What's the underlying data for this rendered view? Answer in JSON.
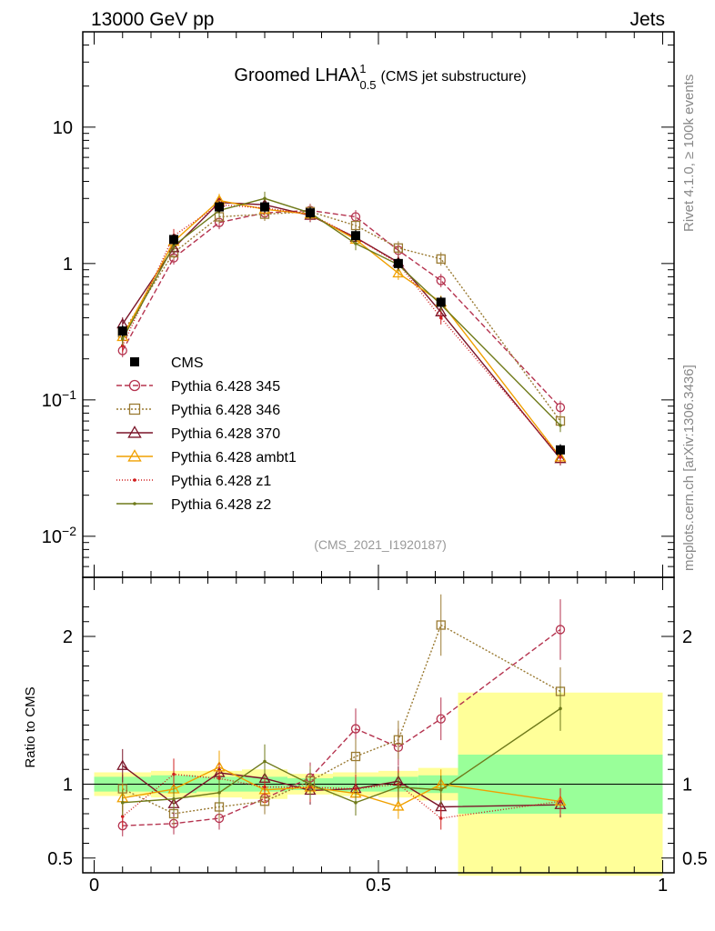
{
  "header": {
    "left": "13000 GeV pp",
    "right": "Jets"
  },
  "side": {
    "rivet": "Rivet 4.1.0, ≥ 100k events",
    "mcplots": "mcplots.cern.ch [arXiv:1306.3436]"
  },
  "chart_data": {
    "type": "line",
    "title": {
      "main": "Groomed LHA",
      "symbol": "λ",
      "sup": "1",
      "sub": "0.5",
      "suffix": "(CMS jet substructure)"
    },
    "analysis_id": "(CMS_2021_I1920187)",
    "yscale": "log",
    "ylim": [
      0.005,
      50
    ],
    "xlim": [
      -0.02,
      1.02
    ],
    "ratio_ylabel": "Ratio to CMS",
    "ratio_ylim": [
      0.4,
      2.4
    ],
    "main_y_ticks": [
      {
        "value": 10,
        "label": "10"
      },
      {
        "value": 1,
        "label": "1"
      },
      {
        "value": 0.1,
        "label": "10",
        "exp": "−1"
      },
      {
        "value": 0.01,
        "label": "10",
        "exp": "−2"
      }
    ],
    "ratio_y_ticks": [
      {
        "value": 0.5,
        "label": "0.5"
      },
      {
        "value": 1,
        "label": "1"
      },
      {
        "value": 2,
        "label": "2"
      }
    ],
    "x_ticks": [
      {
        "value": 0,
        "label": "0"
      },
      {
        "value": 0.5,
        "label": "0.5"
      },
      {
        "value": 1,
        "label": "1"
      }
    ],
    "x": [
      0.05,
      0.14,
      0.22,
      0.3,
      0.38,
      0.46,
      0.535,
      0.61,
      0.82
    ],
    "bin_edges": [
      0,
      0.1,
      0.18,
      0.26,
      0.34,
      0.42,
      0.5,
      0.57,
      0.64,
      1.0
    ],
    "data": {
      "name": "CMS",
      "values": [
        0.32,
        1.5,
        2.6,
        2.6,
        2.35,
        1.6,
        1.0,
        0.52,
        0.043
      ],
      "band_stat": [
        0.05,
        0.06,
        0.05,
        0.05,
        0.04,
        0.05,
        0.05,
        0.06,
        0.2
      ],
      "band_total": [
        0.08,
        0.09,
        0.09,
        0.1,
        0.07,
        0.08,
        0.09,
        0.11,
        0.62
      ]
    },
    "series": [
      {
        "name": "Pythia 6.428 345",
        "color": "#b5334f",
        "dash": "6,3",
        "marker": "circle",
        "values": [
          0.23,
          1.1,
          2.0,
          2.35,
          2.45,
          2.2,
          1.25,
          0.75,
          0.088
        ]
      },
      {
        "name": "Pythia 6.428 346",
        "color": "#9a7a32",
        "dash": "2,2",
        "marker": "square",
        "values": [
          0.31,
          1.2,
          2.2,
          2.3,
          2.4,
          1.9,
          1.3,
          1.08,
          0.07
        ]
      },
      {
        "name": "Pythia 6.428 370",
        "color": "#7a1428",
        "dash": "",
        "marker": "triangle",
        "values": [
          0.36,
          1.3,
          2.8,
          2.7,
          2.25,
          1.55,
          1.02,
          0.44,
          0.037
        ]
      },
      {
        "name": "Pythia 6.428 ambt1",
        "color": "#f0a000",
        "dash": "",
        "marker": "triangle",
        "values": [
          0.29,
          1.45,
          2.9,
          2.5,
          2.3,
          1.5,
          0.85,
          0.52,
          0.038
        ]
      },
      {
        "name": "Pythia 6.428 z1",
        "color": "#d02020",
        "dash": "1,2",
        "marker": "dot",
        "values": [
          0.25,
          1.6,
          2.7,
          2.55,
          2.3,
          1.55,
          1.0,
          0.4,
          0.038
        ]
      },
      {
        "name": "Pythia 6.428 z2",
        "color": "#6f7a1a",
        "dash": "",
        "marker": "dot",
        "values": [
          0.28,
          1.35,
          2.45,
          3.0,
          2.35,
          1.4,
          0.98,
          0.5,
          0.065
        ]
      }
    ]
  }
}
